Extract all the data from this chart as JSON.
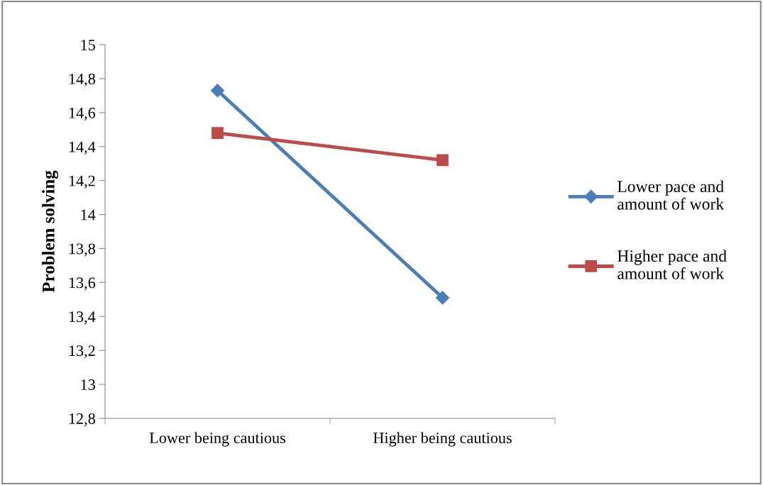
{
  "chart_data": {
    "type": "line",
    "ylabel": "Problem solving",
    "categories": [
      "Lower being cautious",
      "Higher being cautious"
    ],
    "series": [
      {
        "name": "Lower pace and\namount of work",
        "color": "#4a7ebb",
        "values": [
          14.73,
          13.51
        ],
        "marker": "diamond"
      },
      {
        "name": "Higher pace and\namount of work",
        "color": "#be4b48",
        "values": [
          14.48,
          14.32
        ],
        "marker": "square"
      }
    ],
    "ylim": [
      12.8,
      15
    ],
    "yticks": [
      {
        "value": 12.8,
        "label": "12,8"
      },
      {
        "value": 13,
        "label": "13"
      },
      {
        "value": 13.2,
        "label": "13,2"
      },
      {
        "value": 13.4,
        "label": "13,4"
      },
      {
        "value": 13.6,
        "label": "13,6"
      },
      {
        "value": 13.8,
        "label": "13,8"
      },
      {
        "value": 14,
        "label": "14"
      },
      {
        "value": 14.2,
        "label": "14,2"
      },
      {
        "value": 14.4,
        "label": "14,4"
      },
      {
        "value": 14.6,
        "label": "14,6"
      },
      {
        "value": 14.8,
        "label": "14,8"
      },
      {
        "value": 15,
        "label": "15"
      }
    ],
    "grid": false,
    "legend": "right",
    "line_style": "solid"
  }
}
